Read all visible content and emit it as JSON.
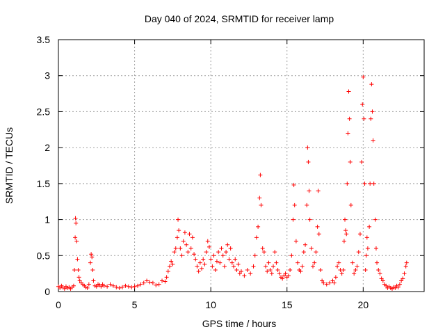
{
  "chart_data": {
    "type": "scatter",
    "title": "Day 040 of 2024, SRMTID for receiver lamp",
    "xlabel": "GPS time / hours",
    "ylabel": "SRMTID / TECUs",
    "xlim": [
      0,
      24
    ],
    "ylim": [
      0,
      3.5
    ],
    "x_ticks": [
      0,
      5,
      10,
      15,
      20
    ],
    "x_tick_labels": [
      "0",
      "5",
      "10",
      "15",
      "20"
    ],
    "y_ticks": [
      0,
      0.5,
      1,
      1.5,
      2,
      2.5,
      3,
      3.5
    ],
    "y_tick_labels": [
      "0",
      "0.5",
      "1",
      "1.5",
      "2",
      "2.5",
      "3",
      "3.5"
    ],
    "grid": true,
    "marker": "+",
    "series": [
      {
        "name": "SRMTID",
        "color": "#ff0000",
        "points": [
          [
            0.0,
            0.07
          ],
          [
            0.1,
            0.05
          ],
          [
            0.2,
            0.08
          ],
          [
            0.3,
            0.06
          ],
          [
            0.4,
            0.04
          ],
          [
            0.5,
            0.07
          ],
          [
            0.6,
            0.05
          ],
          [
            0.7,
            0.06
          ],
          [
            0.8,
            0.04
          ],
          [
            0.9,
            0.06
          ],
          [
            1.0,
            0.08
          ],
          [
            1.05,
            0.3
          ],
          [
            1.1,
            0.75
          ],
          [
            1.12,
            1.02
          ],
          [
            1.15,
            0.95
          ],
          [
            1.2,
            0.7
          ],
          [
            1.25,
            0.45
          ],
          [
            1.3,
            0.3
          ],
          [
            1.35,
            0.2
          ],
          [
            1.4,
            0.15
          ],
          [
            1.5,
            0.12
          ],
          [
            1.6,
            0.1
          ],
          [
            1.7,
            0.08
          ],
          [
            1.8,
            0.06
          ],
          [
            1.9,
            0.05
          ],
          [
            2.0,
            0.1
          ],
          [
            2.1,
            0.4
          ],
          [
            2.15,
            0.52
          ],
          [
            2.2,
            0.48
          ],
          [
            2.25,
            0.3
          ],
          [
            2.3,
            0.15
          ],
          [
            2.4,
            0.08
          ],
          [
            2.5,
            0.07
          ],
          [
            2.6,
            0.1
          ],
          [
            2.7,
            0.09
          ],
          [
            2.8,
            0.07
          ],
          [
            2.9,
            0.1
          ],
          [
            3.0,
            0.08
          ],
          [
            3.2,
            0.07
          ],
          [
            3.4,
            0.1
          ],
          [
            3.6,
            0.08
          ],
          [
            3.8,
            0.06
          ],
          [
            4.0,
            0.05
          ],
          [
            4.2,
            0.06
          ],
          [
            4.4,
            0.08
          ],
          [
            4.6,
            0.07
          ],
          [
            4.8,
            0.06
          ],
          [
            5.0,
            0.07
          ],
          [
            5.2,
            0.08
          ],
          [
            5.4,
            0.1
          ],
          [
            5.6,
            0.12
          ],
          [
            5.8,
            0.15
          ],
          [
            6.0,
            0.13
          ],
          [
            6.2,
            0.12
          ],
          [
            6.4,
            0.09
          ],
          [
            6.6,
            0.1
          ],
          [
            6.8,
            0.15
          ],
          [
            7.0,
            0.14
          ],
          [
            7.1,
            0.2
          ],
          [
            7.2,
            0.28
          ],
          [
            7.3,
            0.35
          ],
          [
            7.4,
            0.42
          ],
          [
            7.5,
            0.38
          ],
          [
            7.6,
            0.55
          ],
          [
            7.7,
            0.6
          ],
          [
            7.8,
            0.75
          ],
          [
            7.85,
            1.0
          ],
          [
            7.9,
            0.85
          ],
          [
            8.0,
            0.6
          ],
          [
            8.1,
            0.5
          ],
          [
            8.2,
            0.7
          ],
          [
            8.3,
            0.82
          ],
          [
            8.4,
            0.65
          ],
          [
            8.5,
            0.55
          ],
          [
            8.6,
            0.8
          ],
          [
            8.7,
            0.6
          ],
          [
            8.8,
            0.75
          ],
          [
            8.9,
            0.52
          ],
          [
            9.0,
            0.45
          ],
          [
            9.1,
            0.35
          ],
          [
            9.2,
            0.28
          ],
          [
            9.3,
            0.4
          ],
          [
            9.4,
            0.32
          ],
          [
            9.5,
            0.45
          ],
          [
            9.6,
            0.38
          ],
          [
            9.7,
            0.55
          ],
          [
            9.8,
            0.7
          ],
          [
            9.9,
            0.62
          ],
          [
            10.0,
            0.45
          ],
          [
            10.1,
            0.35
          ],
          [
            10.2,
            0.5
          ],
          [
            10.3,
            0.3
          ],
          [
            10.4,
            0.42
          ],
          [
            10.5,
            0.55
          ],
          [
            10.6,
            0.4
          ],
          [
            10.7,
            0.6
          ],
          [
            10.8,
            0.5
          ],
          [
            10.9,
            0.35
          ],
          [
            11.0,
            0.55
          ],
          [
            11.1,
            0.65
          ],
          [
            11.2,
            0.45
          ],
          [
            11.3,
            0.6
          ],
          [
            11.4,
            0.4
          ],
          [
            11.5,
            0.35
          ],
          [
            11.6,
            0.45
          ],
          [
            11.7,
            0.3
          ],
          [
            11.8,
            0.38
          ],
          [
            11.9,
            0.25
          ],
          [
            12.0,
            0.28
          ],
          [
            12.2,
            0.22
          ],
          [
            12.4,
            0.3
          ],
          [
            12.6,
            0.25
          ],
          [
            12.8,
            0.35
          ],
          [
            12.9,
            0.5
          ],
          [
            13.0,
            0.75
          ],
          [
            13.1,
            0.9
          ],
          [
            13.2,
            1.3
          ],
          [
            13.25,
            1.62
          ],
          [
            13.3,
            1.2
          ],
          [
            13.4,
            0.6
          ],
          [
            13.5,
            0.55
          ],
          [
            13.6,
            0.35
          ],
          [
            13.7,
            0.28
          ],
          [
            13.8,
            0.4
          ],
          [
            13.9,
            0.3
          ],
          [
            14.0,
            0.25
          ],
          [
            14.1,
            0.35
          ],
          [
            14.2,
            0.55
          ],
          [
            14.3,
            0.4
          ],
          [
            14.4,
            0.3
          ],
          [
            14.5,
            0.25
          ],
          [
            14.6,
            0.2
          ],
          [
            14.7,
            0.18
          ],
          [
            14.8,
            0.22
          ],
          [
            14.9,
            0.25
          ],
          [
            15.0,
            0.2
          ],
          [
            15.1,
            0.22
          ],
          [
            15.2,
            0.3
          ],
          [
            15.3,
            0.5
          ],
          [
            15.4,
            1.0
          ],
          [
            15.45,
            1.48
          ],
          [
            15.5,
            1.2
          ],
          [
            15.6,
            0.7
          ],
          [
            15.7,
            0.4
          ],
          [
            15.8,
            0.3
          ],
          [
            15.9,
            0.28
          ],
          [
            16.0,
            0.35
          ],
          [
            16.1,
            0.55
          ],
          [
            16.2,
            0.65
          ],
          [
            16.3,
            1.2
          ],
          [
            16.35,
            2.0
          ],
          [
            16.4,
            1.8
          ],
          [
            16.45,
            1.4
          ],
          [
            16.5,
            1.0
          ],
          [
            16.6,
            0.6
          ],
          [
            16.7,
            0.35
          ],
          [
            16.8,
            0.4
          ],
          [
            16.9,
            0.55
          ],
          [
            17.0,
            0.9
          ],
          [
            17.05,
            1.4
          ],
          [
            17.1,
            0.8
          ],
          [
            17.2,
            0.3
          ],
          [
            17.3,
            0.15
          ],
          [
            17.4,
            0.12
          ],
          [
            17.6,
            0.1
          ],
          [
            17.8,
            0.12
          ],
          [
            18.0,
            0.15
          ],
          [
            18.1,
            0.12
          ],
          [
            18.2,
            0.2
          ],
          [
            18.3,
            0.35
          ],
          [
            18.4,
            0.4
          ],
          [
            18.5,
            0.3
          ],
          [
            18.6,
            0.25
          ],
          [
            18.7,
            0.3
          ],
          [
            18.75,
            0.7
          ],
          [
            18.8,
            1.0
          ],
          [
            18.85,
            0.85
          ],
          [
            18.9,
            0.8
          ],
          [
            18.95,
            1.5
          ],
          [
            19.0,
            2.2
          ],
          [
            19.05,
            2.78
          ],
          [
            19.1,
            2.4
          ],
          [
            19.15,
            1.8
          ],
          [
            19.2,
            1.2
          ],
          [
            19.3,
            0.4
          ],
          [
            19.4,
            0.25
          ],
          [
            19.5,
            0.3
          ],
          [
            19.6,
            0.35
          ],
          [
            19.7,
            0.55
          ],
          [
            19.8,
            0.8
          ],
          [
            19.9,
            1.8
          ],
          [
            19.95,
            2.6
          ],
          [
            20.0,
            2.98
          ],
          [
            20.05,
            2.4
          ],
          [
            20.1,
            1.5
          ],
          [
            20.15,
            0.3
          ],
          [
            20.2,
            0.5
          ],
          [
            20.25,
            0.75
          ],
          [
            20.3,
            0.6
          ],
          [
            20.4,
            0.9
          ],
          [
            20.45,
            1.5
          ],
          [
            20.5,
            2.4
          ],
          [
            20.55,
            2.88
          ],
          [
            20.6,
            2.5
          ],
          [
            20.65,
            2.1
          ],
          [
            20.7,
            1.5
          ],
          [
            20.8,
            1.0
          ],
          [
            20.85,
            0.6
          ],
          [
            20.9,
            0.4
          ],
          [
            21.0,
            0.3
          ],
          [
            21.1,
            0.25
          ],
          [
            21.2,
            0.18
          ],
          [
            21.3,
            0.15
          ],
          [
            21.4,
            0.1
          ],
          [
            21.5,
            0.08
          ],
          [
            21.6,
            0.05
          ],
          [
            21.7,
            0.07
          ],
          [
            21.8,
            0.05
          ],
          [
            21.9,
            0.04
          ],
          [
            22.0,
            0.06
          ],
          [
            22.1,
            0.05
          ],
          [
            22.2,
            0.08
          ],
          [
            22.3,
            0.06
          ],
          [
            22.4,
            0.1
          ],
          [
            22.5,
            0.15
          ],
          [
            22.6,
            0.18
          ],
          [
            22.7,
            0.25
          ],
          [
            22.8,
            0.35
          ],
          [
            22.85,
            0.4
          ]
        ]
      }
    ]
  }
}
